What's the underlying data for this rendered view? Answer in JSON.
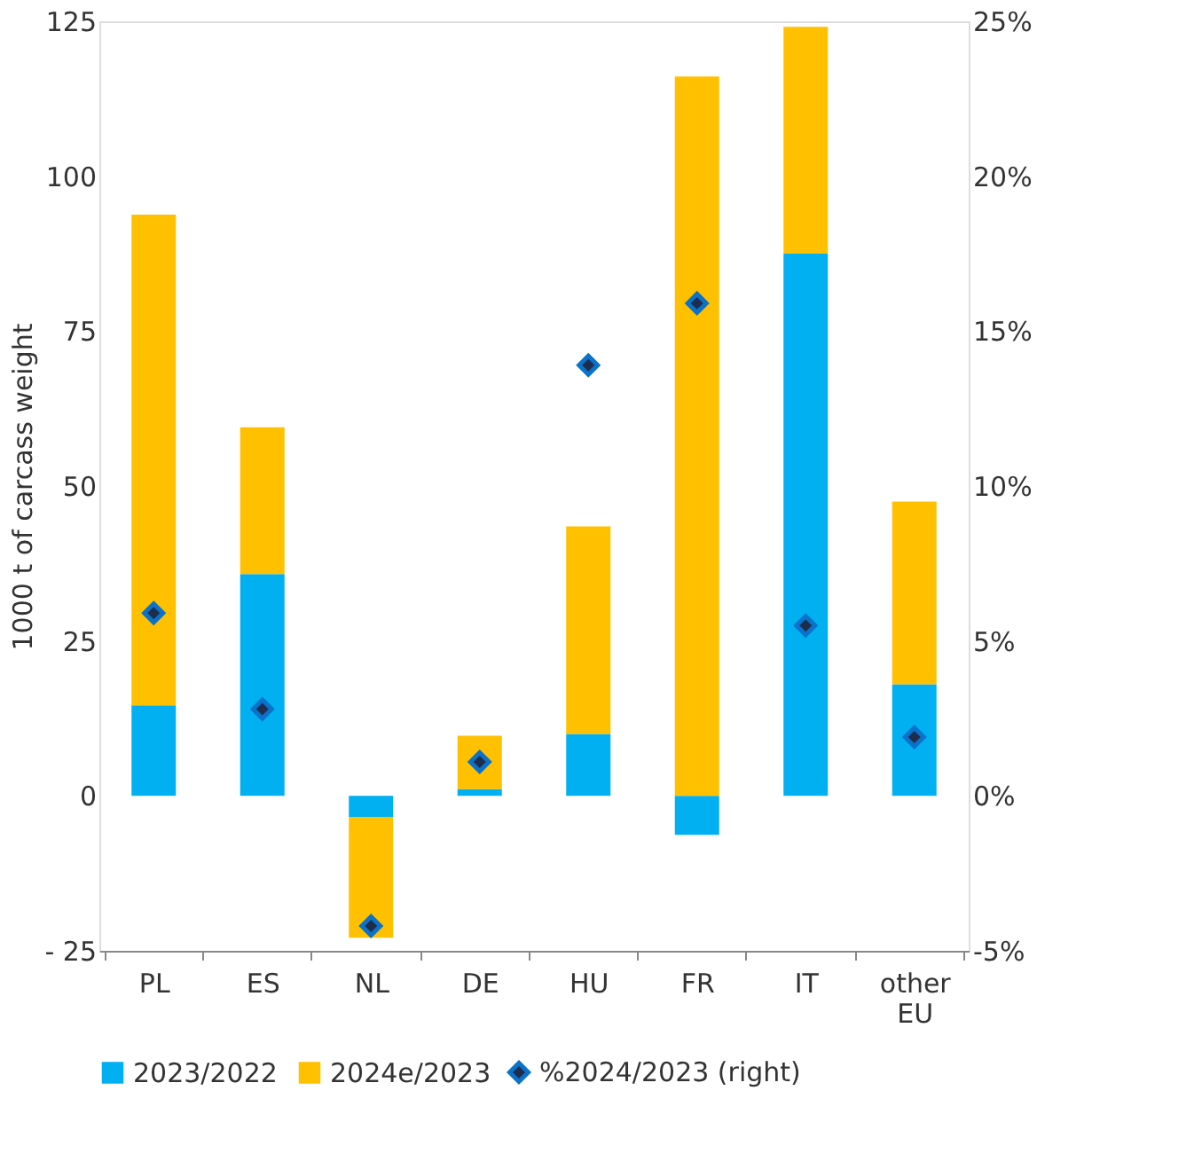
{
  "chart_data": {
    "type": "bar",
    "stacked": true,
    "ylabel": "1000 t of carcass weight",
    "categories": [
      "PL",
      "ES",
      "NL",
      "DE",
      "HU",
      "FR",
      "IT",
      "other EU"
    ],
    "series": [
      {
        "name": "2023/2022",
        "color": "#00b0f0",
        "values": [
          14.6,
          35.8,
          -3.4,
          1.1,
          10,
          -6.3,
          87.5,
          18
        ]
      },
      {
        "name": "2024e/2023",
        "color": "#ffc000",
        "values": [
          79.2,
          23.7,
          -19.5,
          8.6,
          33.5,
          116.1,
          36.6,
          29.5
        ]
      },
      {
        "name": "%2024/2023 (right)",
        "type": "scatter",
        "axis": "y2",
        "marker": "diamond",
        "color": "#1f2d4d",
        "values": [
          5.9,
          2.8,
          -4.2,
          1.1,
          13.9,
          15.9,
          5.5,
          1.9
        ]
      }
    ],
    "ylim": [
      -25,
      125
    ],
    "yticks": [
      {
        "value": -25,
        "label": "- 25"
      },
      0,
      25,
      50,
      75,
      100,
      125
    ],
    "y2lim": [
      -5,
      25
    ],
    "y2ticks": [
      {
        "value": -5,
        "label": "-5%"
      },
      {
        "value": 0,
        "label": "0%"
      },
      {
        "value": 5,
        "label": "5%"
      },
      {
        "value": 10,
        "label": "10%"
      },
      {
        "value": 15,
        "label": "15%"
      },
      {
        "value": 20,
        "label": "20%"
      },
      {
        "value": 25,
        "label": "25%"
      }
    ],
    "grid": false,
    "legend": "bottom"
  }
}
